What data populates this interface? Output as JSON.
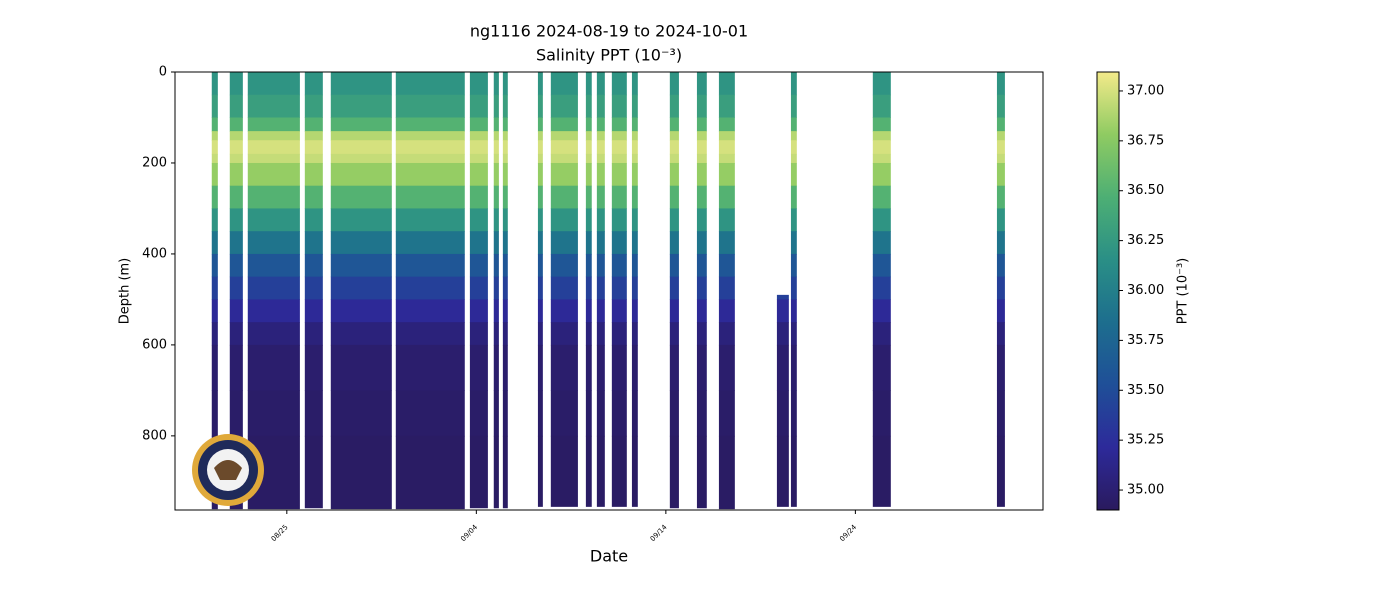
{
  "chart_data": {
    "type": "profile",
    "title": "ng1116 2024-08-19 to 2024-10-01",
    "subtitle": "Salinity PPT (10⁻³)",
    "x_label": "Date",
    "y_label": "Depth (m)",
    "colorbar_label": "PPT (10⁻³)",
    "xlim": [
      232.1,
      277.9
    ],
    "xticks": [
      {
        "value": 238,
        "label": "08/25"
      },
      {
        "value": 248,
        "label": "09/04"
      },
      {
        "value": 258,
        "label": "09/14"
      },
      {
        "value": 268,
        "label": "09/24"
      }
    ],
    "ylim": [
      0,
      963
    ],
    "y_inverted": true,
    "yticks": [
      0,
      200,
      400,
      600,
      800
    ],
    "clim": [
      34.9,
      37.095
    ],
    "cticks": [
      {
        "value": 35,
        "label": "35.00"
      },
      {
        "value": 35.25,
        "label": "35.25"
      },
      {
        "value": 35.5,
        "label": "35.50"
      },
      {
        "value": 35.75,
        "label": "35.75"
      },
      {
        "value": 36,
        "label": "36.00"
      },
      {
        "value": 36.25,
        "label": "36.25"
      },
      {
        "value": 36.5,
        "label": "36.50"
      },
      {
        "value": 36.75,
        "label": "36.75"
      },
      {
        "value": 37,
        "label": "37.00"
      }
    ],
    "colormap": [
      "#2a1a5e",
      "#2d2a9a",
      "#1f4f98",
      "#1d6e8e",
      "#2a8f86",
      "#4daf74",
      "#8fcb62",
      "#f3ea8a"
    ],
    "x_start": [
      234.04,
      234.99,
      235.94,
      238.95,
      240.32,
      243.75,
      247.66,
      248.92,
      249.4,
      251.25,
      251.93,
      253.78,
      254.36,
      255.15,
      256.21,
      258.21,
      259.64,
      260.8,
      263.86,
      264.6,
      268.92,
      275.47
    ],
    "x_end": [
      234.36,
      235.68,
      238.69,
      239.9,
      243.54,
      247.39,
      248.61,
      249.19,
      249.66,
      251.51,
      253.36,
      254.09,
      254.78,
      255.94,
      256.52,
      258.69,
      260.16,
      261.64,
      264.49,
      264.91,
      269.87,
      275.89
    ],
    "depth_min": [
      0,
      0,
      0,
      0,
      0,
      0,
      0,
      0,
      0,
      0,
      0,
      0,
      0,
      0,
      0,
      0,
      0,
      0,
      490,
      0,
      0,
      0
    ],
    "depth_max": [
      960,
      960,
      960,
      958,
      960,
      960,
      958,
      958,
      958,
      955,
      955,
      955,
      955,
      955,
      955,
      958,
      958,
      960,
      955,
      955,
      955,
      955
    ],
    "depths": [
      0,
      50,
      100,
      130,
      150,
      180,
      200,
      250,
      300,
      350,
      400,
      450,
      500,
      550,
      600,
      700,
      800
    ],
    "salinity": [
      36.2,
      36.3,
      36.5,
      36.9,
      37.0,
      36.95,
      36.8,
      36.5,
      36.2,
      35.9,
      35.6,
      35.4,
      35.2,
      35.05,
      34.98,
      34.95,
      34.93
    ]
  }
}
